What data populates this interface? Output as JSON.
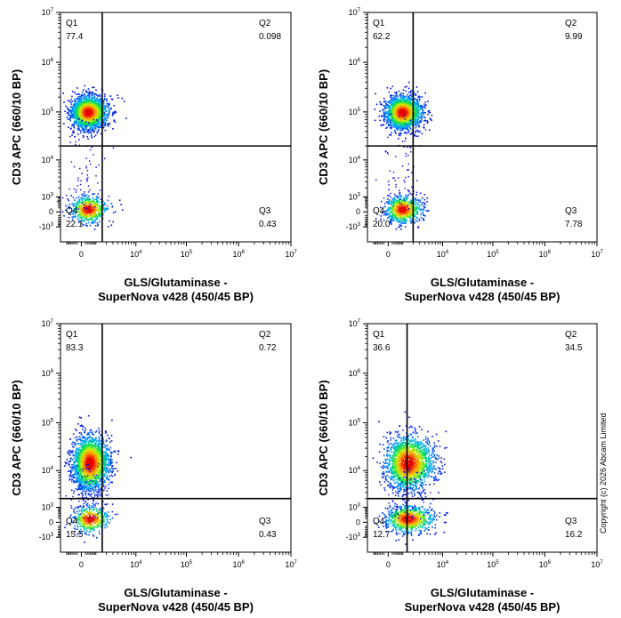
{
  "copyright": "Copyright (c) 2026 Abcam Limited",
  "chart_data": [
    {
      "type": "scatter",
      "xlabel": [
        "GLS/Glutaminase -",
        "SuperNova v428 (450/45 BP)"
      ],
      "ylabel": "CD3 APC (660/10 BP)",
      "x_scale": "biexponential",
      "y_scale": "biexponential",
      "x_ticks": [
        "0",
        "10^4",
        "10^5",
        "10^6",
        "10^7"
      ],
      "y_ticks": [
        "10^7",
        "10^6",
        "10^5",
        "10^4",
        "10^3",
        "0",
        "-10^3"
      ],
      "gate": {
        "x": 1500,
        "y": 20000
      },
      "quadrants": [
        {
          "label": "Q1",
          "value": "77.4"
        },
        {
          "label": "Q2",
          "value": "0.098"
        },
        {
          "label": "Q3",
          "value": "0.43"
        },
        {
          "label": "Q4",
          "value": "22.1"
        }
      ],
      "populations": [
        {
          "x_center": 300,
          "y_center": 100000,
          "fraction": 0.77
        },
        {
          "x_center": 300,
          "y_center": 150,
          "fraction": 0.22
        }
      ]
    },
    {
      "type": "scatter",
      "xlabel": [
        "GLS/Glutaminase -",
        "SuperNova v428 (450/45 BP)"
      ],
      "ylabel": "CD3 APC (660/10 BP)",
      "x_scale": "biexponential",
      "y_scale": "biexponential",
      "x_ticks": [
        "0",
        "10^4",
        "10^5",
        "10^6",
        "10^7"
      ],
      "y_ticks": [
        "10^7",
        "10^6",
        "10^5",
        "10^4",
        "10^3",
        "0",
        "-10^3"
      ],
      "gate": {
        "x": 2000,
        "y": 20000
      },
      "quadrants": [
        {
          "label": "Q1",
          "value": "62.2"
        },
        {
          "label": "Q2",
          "value": "9.99"
        },
        {
          "label": "Q3",
          "value": "7.78"
        },
        {
          "label": "Q4",
          "value": "20.0"
        }
      ],
      "populations": [
        {
          "x_center": 800,
          "y_center": 100000,
          "fraction": 0.72
        },
        {
          "x_center": 800,
          "y_center": 150,
          "fraction": 0.28
        }
      ]
    },
    {
      "type": "scatter",
      "xlabel": [
        "GLS/Glutaminase -",
        "SuperNova v428 (450/45 BP)"
      ],
      "ylabel": "CD3 APC (660/10 BP)",
      "x_scale": "biexponential",
      "y_scale": "biexponential",
      "x_ticks": [
        "0",
        "10^4",
        "10^5",
        "10^6",
        "10^7"
      ],
      "y_ticks": [
        "10^7",
        "10^6",
        "10^5",
        "10^4",
        "10^3",
        "0",
        "-10^3"
      ],
      "gate": {
        "x": 1500,
        "y": 2000
      },
      "quadrants": [
        {
          "label": "Q1",
          "value": "83.3"
        },
        {
          "label": "Q2",
          "value": "0.72"
        },
        {
          "label": "Q3",
          "value": "0.43"
        },
        {
          "label": "Q4",
          "value": "15.5"
        }
      ],
      "populations": [
        {
          "x_center": 400,
          "y_center": 15000,
          "fraction": 0.84
        },
        {
          "x_center": 400,
          "y_center": 200,
          "fraction": 0.16
        }
      ]
    },
    {
      "type": "scatter",
      "xlabel": [
        "GLS/Glutaminase -",
        "SuperNova v428 (450/45 BP)"
      ],
      "ylabel": "CD3 APC (660/10 BP)",
      "x_scale": "biexponential",
      "y_scale": "biexponential",
      "x_ticks": [
        "0",
        "10^4",
        "10^5",
        "10^6",
        "10^7"
      ],
      "y_ticks": [
        "10^7",
        "10^6",
        "10^5",
        "10^4",
        "10^3",
        "0",
        "-10^3"
      ],
      "gate": {
        "x": 1300,
        "y": 2000
      },
      "quadrants": [
        {
          "label": "Q1",
          "value": "36.6"
        },
        {
          "label": "Q2",
          "value": "34.5"
        },
        {
          "label": "Q3",
          "value": "16.2"
        },
        {
          "label": "Q4",
          "value": "12.7"
        }
      ],
      "populations": [
        {
          "x_center": 1300,
          "y_center": 15000,
          "fraction": 0.71
        },
        {
          "x_center": 1300,
          "y_center": 200,
          "fraction": 0.29
        }
      ]
    }
  ]
}
